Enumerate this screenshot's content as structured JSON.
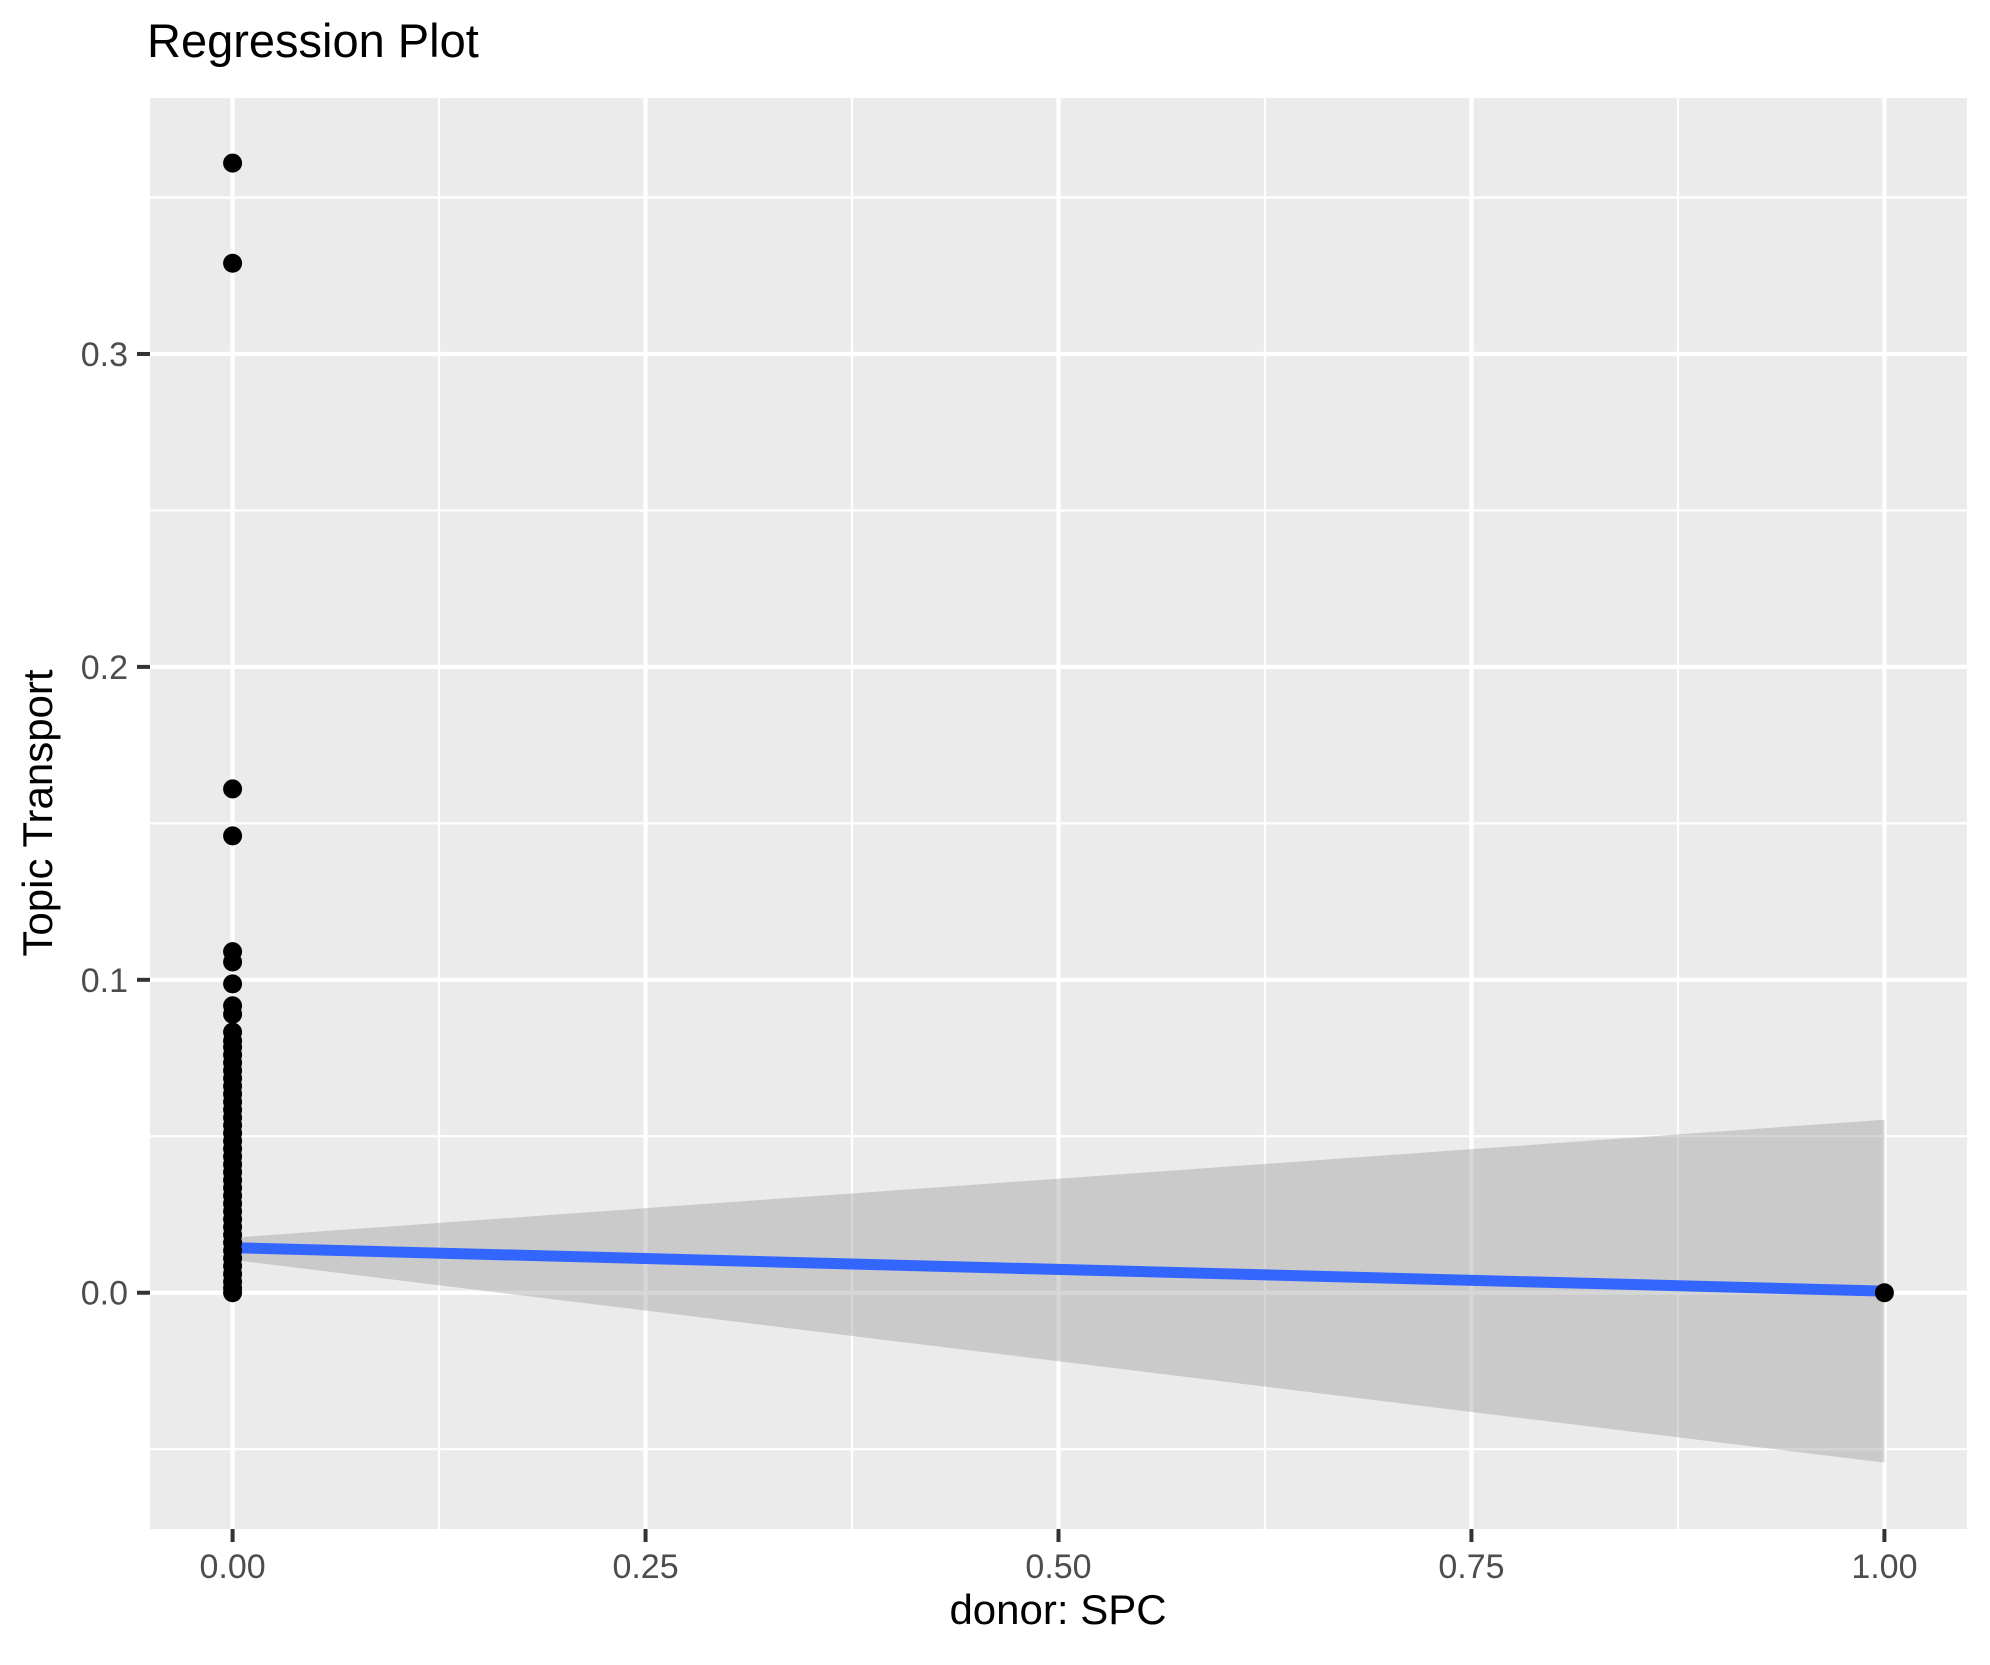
{
  "chart_data": {
    "type": "scatter",
    "title": "Regression Plot",
    "xlabel": "donor: SPC",
    "ylabel": "Topic Transport",
    "legend": "none",
    "grid": "on",
    "panel_background": "#EBEBEB",
    "xlim": [
      -0.05,
      1.05
    ],
    "ylim": [
      -0.0755,
      0.3818
    ],
    "x_ticks": [
      0.0,
      0.25,
      0.5,
      0.75,
      1.0
    ],
    "x_tick_labels": [
      "0.00",
      "0.25",
      "0.50",
      "0.75",
      "1.00"
    ],
    "x_minor_ticks": [
      0.125,
      0.375,
      0.625,
      0.875
    ],
    "y_ticks": [
      0.0,
      0.1,
      0.2,
      0.3
    ],
    "y_tick_labels": [
      "0.0",
      "0.1",
      "0.2",
      "0.3"
    ],
    "y_minor_ticks": [
      -0.05,
      0.05,
      0.15,
      0.25,
      0.35
    ],
    "points": [
      [
        0,
        0.361
      ],
      [
        0,
        0.329
      ],
      [
        0,
        0.161
      ],
      [
        0,
        0.146
      ],
      [
        0,
        0.109
      ],
      [
        0,
        0.1057
      ],
      [
        0,
        0.0987
      ],
      [
        0,
        0.0917
      ],
      [
        0,
        0.089
      ],
      [
        0,
        0.0833
      ],
      [
        0,
        0.0805
      ],
      [
        0,
        0.0785
      ],
      [
        0,
        0.076
      ],
      [
        0,
        0.0735
      ],
      [
        0,
        0.071
      ],
      [
        0,
        0.0685
      ],
      [
        0,
        0.066
      ],
      [
        0,
        0.0635
      ],
      [
        0,
        0.061
      ],
      [
        0,
        0.0585
      ],
      [
        0,
        0.056
      ],
      [
        0,
        0.0535
      ],
      [
        0,
        0.051
      ],
      [
        0,
        0.0485
      ],
      [
        0,
        0.046
      ],
      [
        0,
        0.0435
      ],
      [
        0,
        0.041
      ],
      [
        0,
        0.0385
      ],
      [
        0,
        0.036
      ],
      [
        0,
        0.0335
      ],
      [
        0,
        0.031
      ],
      [
        0,
        0.0285
      ],
      [
        0,
        0.026
      ],
      [
        0,
        0.0235
      ],
      [
        0,
        0.021
      ],
      [
        0,
        0.0185
      ],
      [
        0,
        0.016
      ],
      [
        0,
        0.0135
      ],
      [
        0,
        0.011
      ],
      [
        0,
        0.0085
      ],
      [
        0,
        0.006
      ],
      [
        0,
        0.0035
      ],
      [
        0,
        0.0015
      ],
      [
        0,
        0.0
      ],
      [
        1,
        0.0
      ]
    ],
    "regression_line": {
      "x": [
        0,
        1
      ],
      "y": [
        0.0144,
        0.0005
      ]
    },
    "confidence_band": {
      "x": [
        0,
        1
      ],
      "upper": [
        0.0176,
        0.0553
      ],
      "lower": [
        0.0105,
        -0.0543
      ]
    },
    "colors": {
      "title": "#000000",
      "axis_title": "#000000",
      "tick_label": "#4D4D4D",
      "tick_mark": "#333333",
      "grid": "#FFFFFF",
      "panel": "#EBEBEB",
      "point": "#000000",
      "line": "#3366FF",
      "band": "#999999",
      "band_opacity": 0.4
    }
  }
}
